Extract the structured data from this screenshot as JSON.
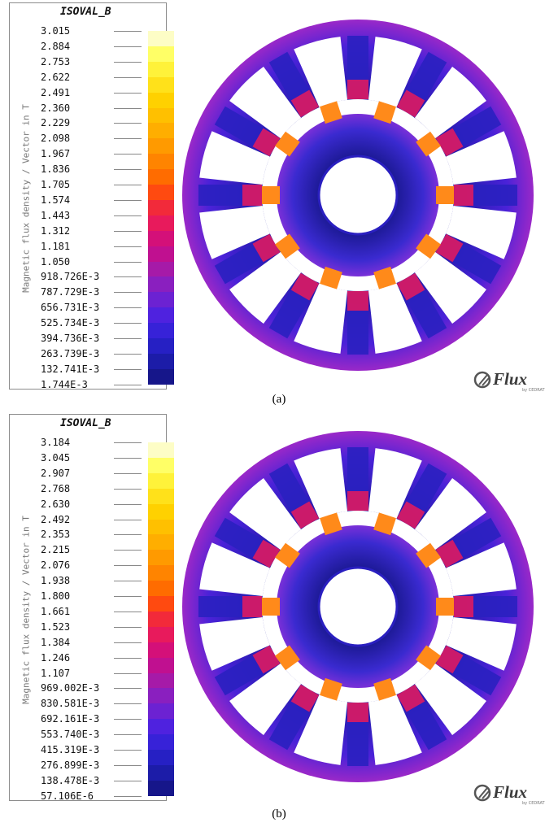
{
  "panels": [
    {
      "id": "a",
      "caption": "(a)",
      "legend": {
        "title": "ISOVAL_B",
        "quantity_label": "Magnetic flux density / Vector in T",
        "ticks": [
          "3.015",
          "2.884",
          "2.753",
          "2.622",
          "2.491",
          "2.360",
          "2.229",
          "2.098",
          "1.967",
          "1.836",
          "1.705",
          "1.574",
          "1.443",
          "1.312",
          "1.181",
          "1.050",
          "918.726E-3",
          "787.729E-3",
          "656.731E-3",
          "525.734E-3",
          "394.736E-3",
          "263.739E-3",
          "132.741E-3",
          "1.744E-3"
        ]
      },
      "logo": {
        "text": "Flux",
        "sub": "by CEDRAT"
      }
    },
    {
      "id": "b",
      "caption": "(b)",
      "legend": {
        "title": "ISOVAL_B",
        "quantity_label": "Magnetic flux density / Vector in T",
        "ticks": [
          "3.184",
          "3.045",
          "2.907",
          "2.768",
          "2.630",
          "2.492",
          "2.353",
          "2.215",
          "2.076",
          "1.938",
          "1.800",
          "1.661",
          "1.523",
          "1.384",
          "1.246",
          "1.107",
          "969.002E-3",
          "830.581E-3",
          "692.161E-3",
          "553.740E-3",
          "415.319E-3",
          "276.899E-3",
          "138.478E-3",
          "57.106E-6"
        ]
      },
      "logo": {
        "text": "Flux",
        "sub": "by CEDRAT"
      }
    }
  ],
  "palette": [
    "#fdfdc6",
    "#ffff66",
    "#fff23a",
    "#ffe11a",
    "#ffd100",
    "#ffc000",
    "#ffae00",
    "#ff9a00",
    "#ff8400",
    "#ff6c00",
    "#ff4a10",
    "#f22a3a",
    "#e81a5c",
    "#d41079",
    "#c01090",
    "#a61aa8",
    "#8a1fbf",
    "#6c22d2",
    "#4f22df",
    "#3722d8",
    "#2620c4",
    "#1c1ca8",
    "#16168a",
    "#0f0f66"
  ],
  "colors": {
    "stator_main": "#2a1fb8",
    "rotor_main": "#3a2ad0",
    "shaft_ring": "#2a1fc0",
    "hotspot": "#ff8a1a",
    "tip": "#e81a5c"
  }
}
